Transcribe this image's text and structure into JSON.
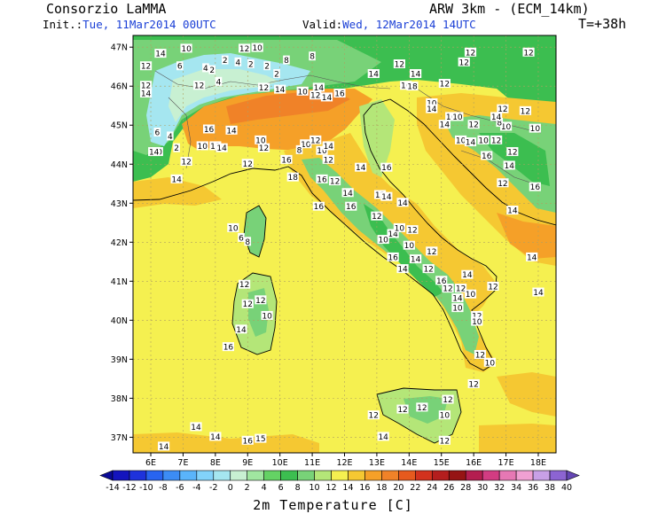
{
  "header": {
    "org": "Consorzio LaMMA",
    "model": "ARW 3km - (ECM_14km)",
    "init_label": "Init.:",
    "init_value": "Tue, 11Mar2014 00UTC",
    "valid_label": "Valid:",
    "valid_value": "Wed, 12Mar2014 14UTC",
    "lead": "T=+38h"
  },
  "axes": {
    "lat_labels": [
      "47N",
      "46N",
      "45N",
      "44N",
      "43N",
      "42N",
      "41N",
      "40N",
      "39N",
      "38N",
      "37N"
    ],
    "lon_labels": [
      "6E",
      "7E",
      "8E",
      "9E",
      "10E",
      "11E",
      "12E",
      "13E",
      "14E",
      "15E",
      "16E",
      "17E",
      "18E"
    ]
  },
  "colorbar": {
    "title": "2m Temperature [C]",
    "ticks": [
      "-14",
      "-12",
      "-10",
      "-8",
      "-6",
      "-4",
      "-2",
      "0",
      "2",
      "4",
      "6",
      "8",
      "10",
      "12",
      "14",
      "16",
      "18",
      "20",
      "22",
      "24",
      "26",
      "28",
      "30",
      "32",
      "34",
      "36",
      "38",
      "40"
    ],
    "colors": [
      "#0a0a96",
      "#1414be",
      "#1e32dc",
      "#2864f0",
      "#3c8cf5",
      "#5ab4fa",
      "#82d2fa",
      "#a5e6f0",
      "#c8f0d2",
      "#a0e6a0",
      "#64d264",
      "#3cbe50",
      "#78d278",
      "#b4e678",
      "#f5f050",
      "#f5c832",
      "#f5a028",
      "#f08228",
      "#e65a1e",
      "#d2321e",
      "#b41e1e",
      "#961414",
      "#b41e50",
      "#d23c82",
      "#e678b4",
      "#f0a0d2",
      "#c8a0e6",
      "#8c64d2",
      "#6446b4"
    ]
  },
  "colors": {
    "sea": "#f5f050",
    "warm": "#f5a028",
    "mild": "#b4e678",
    "cool": "#a5e6f0",
    "green": "#3cbe50"
  },
  "isotherm_labels": [
    {
      "t": "14",
      "lon": 6.3,
      "lat": 46.82
    },
    {
      "t": "10",
      "lon": 7.1,
      "lat": 46.95
    },
    {
      "t": "12",
      "lon": 8.9,
      "lat": 46.95
    },
    {
      "t": "10",
      "lon": 9.3,
      "lat": 46.97
    },
    {
      "t": "2",
      "lon": 8.3,
      "lat": 46.65
    },
    {
      "t": "4",
      "lon": 8.7,
      "lat": 46.6
    },
    {
      "t": "2",
      "lon": 9.1,
      "lat": 46.55
    },
    {
      "t": "2",
      "lon": 9.6,
      "lat": 46.5
    },
    {
      "t": "6",
      "lon": 6.9,
      "lat": 46.5
    },
    {
      "t": "4",
      "lon": 7.7,
      "lat": 46.45
    },
    {
      "t": "2",
      "lon": 7.9,
      "lat": 46.4
    },
    {
      "t": "4",
      "lon": 8.1,
      "lat": 46.1
    },
    {
      "t": "12",
      "lon": 5.85,
      "lat": 46.5
    },
    {
      "t": "12",
      "lon": 5.85,
      "lat": 46.0
    },
    {
      "t": "14",
      "lon": 5.85,
      "lat": 45.8
    },
    {
      "t": "12",
      "lon": 7.5,
      "lat": 46.0
    },
    {
      "t": "2",
      "lon": 9.9,
      "lat": 46.3
    },
    {
      "t": "14",
      "lon": 10.0,
      "lat": 45.9
    },
    {
      "t": "12",
      "lon": 9.5,
      "lat": 45.95
    },
    {
      "t": "10",
      "lon": 10.7,
      "lat": 45.85
    },
    {
      "t": "14",
      "lon": 11.2,
      "lat": 45.95
    },
    {
      "t": "8",
      "lon": 10.2,
      "lat": 46.65
    },
    {
      "t": "8",
      "lon": 11.0,
      "lat": 46.75
    },
    {
      "t": "12",
      "lon": 13.7,
      "lat": 46.55
    },
    {
      "t": "14",
      "lon": 12.9,
      "lat": 46.3
    },
    {
      "t": "14",
      "lon": 14.2,
      "lat": 46.3
    },
    {
      "t": "16",
      "lon": 13.9,
      "lat": 46.0
    },
    {
      "t": "18",
      "lon": 14.1,
      "lat": 45.98
    },
    {
      "t": "10",
      "lon": 14.7,
      "lat": 45.55
    },
    {
      "t": "12",
      "lon": 15.9,
      "lat": 46.85
    },
    {
      "t": "12",
      "lon": 17.7,
      "lat": 46.85
    },
    {
      "t": "12",
      "lon": 15.7,
      "lat": 46.6
    },
    {
      "t": "12",
      "lon": 15.1,
      "lat": 46.05
    },
    {
      "t": "14",
      "lon": 11.45,
      "lat": 45.7
    },
    {
      "t": "12",
      "lon": 11.1,
      "lat": 45.75
    },
    {
      "t": "16",
      "lon": 11.85,
      "lat": 45.8
    },
    {
      "t": "16",
      "lon": 7.8,
      "lat": 44.88
    },
    {
      "t": "14",
      "lon": 8.5,
      "lat": 44.85
    },
    {
      "t": "10",
      "lon": 7.6,
      "lat": 44.45
    },
    {
      "t": "12",
      "lon": 8.0,
      "lat": 44.45
    },
    {
      "t": "14",
      "lon": 8.2,
      "lat": 44.4
    },
    {
      "t": "4",
      "lon": 6.6,
      "lat": 44.7
    },
    {
      "t": "2",
      "lon": 6.8,
      "lat": 44.4
    },
    {
      "t": "6",
      "lon": 6.2,
      "lat": 44.8
    },
    {
      "t": "10",
      "lon": 6.2,
      "lat": 44.3
    },
    {
      "t": "12",
      "lon": 7.1,
      "lat": 44.05
    },
    {
      "t": "14",
      "lon": 6.8,
      "lat": 43.6
    },
    {
      "t": "10",
      "lon": 9.4,
      "lat": 44.6
    },
    {
      "t": "12",
      "lon": 9.5,
      "lat": 44.4
    },
    {
      "t": "10",
      "lon": 10.8,
      "lat": 44.5
    },
    {
      "t": "12",
      "lon": 11.1,
      "lat": 44.6
    },
    {
      "t": "10",
      "lon": 11.3,
      "lat": 44.33
    },
    {
      "t": "14",
      "lon": 11.5,
      "lat": 44.45
    },
    {
      "t": "8",
      "lon": 10.6,
      "lat": 44.35
    },
    {
      "t": "16",
      "lon": 10.2,
      "lat": 44.1
    },
    {
      "t": "12",
      "lon": 11.5,
      "lat": 44.1
    },
    {
      "t": "16",
      "lon": 11.3,
      "lat": 43.6
    },
    {
      "t": "12",
      "lon": 11.7,
      "lat": 43.55
    },
    {
      "t": "18",
      "lon": 10.4,
      "lat": 43.65
    },
    {
      "t": "16",
      "lon": 11.2,
      "lat": 42.9
    },
    {
      "t": "14",
      "lon": 12.5,
      "lat": 43.9
    },
    {
      "t": "16",
      "lon": 13.3,
      "lat": 43.9
    },
    {
      "t": "14",
      "lon": 12.1,
      "lat": 43.25
    },
    {
      "t": "16",
      "lon": 12.2,
      "lat": 42.9
    },
    {
      "t": "12",
      "lon": 13.1,
      "lat": 43.2
    },
    {
      "t": "14",
      "lon": 13.3,
      "lat": 43.15
    },
    {
      "t": "12",
      "lon": 13.0,
      "lat": 42.65
    },
    {
      "t": "14",
      "lon": 13.8,
      "lat": 43.0
    },
    {
      "t": "14",
      "lon": 13.5,
      "lat": 42.2
    },
    {
      "t": "10",
      "lon": 13.7,
      "lat": 42.35
    },
    {
      "t": "12",
      "lon": 14.1,
      "lat": 42.3
    },
    {
      "t": "10",
      "lon": 13.2,
      "lat": 42.05
    },
    {
      "t": "10",
      "lon": 14.0,
      "lat": 41.9
    },
    {
      "t": "12",
      "lon": 14.7,
      "lat": 41.75
    },
    {
      "t": "16",
      "lon": 13.5,
      "lat": 41.6
    },
    {
      "t": "14",
      "lon": 13.8,
      "lat": 41.3
    },
    {
      "t": "14",
      "lon": 14.2,
      "lat": 41.55
    },
    {
      "t": "12",
      "lon": 14.6,
      "lat": 41.3
    },
    {
      "t": "14",
      "lon": 15.8,
      "lat": 41.15
    },
    {
      "t": "16",
      "lon": 15.0,
      "lat": 41.0
    },
    {
      "t": "12",
      "lon": 15.2,
      "lat": 40.8
    },
    {
      "t": "12",
      "lon": 15.6,
      "lat": 40.8
    },
    {
      "t": "10",
      "lon": 15.9,
      "lat": 40.65
    },
    {
      "t": "14",
      "lon": 15.5,
      "lat": 40.55
    },
    {
      "t": "10",
      "lon": 15.5,
      "lat": 40.3
    },
    {
      "t": "12",
      "lon": 16.6,
      "lat": 40.85
    },
    {
      "t": "14",
      "lon": 17.8,
      "lat": 41.6
    },
    {
      "t": "14",
      "lon": 18.0,
      "lat": 40.7
    },
    {
      "t": "12",
      "lon": 16.1,
      "lat": 40.1
    },
    {
      "t": "10",
      "lon": 16.1,
      "lat": 39.95
    },
    {
      "t": "12",
      "lon": 16.2,
      "lat": 39.1
    },
    {
      "t": "10",
      "lon": 16.5,
      "lat": 38.9
    },
    {
      "t": "12",
      "lon": 16.0,
      "lat": 38.35
    },
    {
      "t": "12",
      "lon": 15.2,
      "lat": 37.95
    },
    {
      "t": "10",
      "lon": 15.1,
      "lat": 37.55
    },
    {
      "t": "12",
      "lon": 14.4,
      "lat": 37.75
    },
    {
      "t": "12",
      "lon": 13.8,
      "lat": 37.7
    },
    {
      "t": "12",
      "lon": 12.9,
      "lat": 37.55
    },
    {
      "t": "14",
      "lon": 13.2,
      "lat": 37.0
    },
    {
      "t": "12",
      "lon": 15.1,
      "lat": 36.9
    },
    {
      "t": "14",
      "lon": 8.0,
      "lat": 37.0
    },
    {
      "t": "14",
      "lon": 6.4,
      "lat": 36.75
    },
    {
      "t": "16",
      "lon": 9.0,
      "lat": 36.9
    },
    {
      "t": "15",
      "lon": 9.4,
      "lat": 36.95
    },
    {
      "t": "14",
      "lon": 7.4,
      "lat": 37.25
    },
    {
      "t": "8",
      "lon": 9.0,
      "lat": 42.0
    },
    {
      "t": "6",
      "lon": 8.8,
      "lat": 42.1
    },
    {
      "t": "10",
      "lon": 8.55,
      "lat": 42.35
    },
    {
      "t": "12",
      "lon": 8.9,
      "lat": 40.9
    },
    {
      "t": "12",
      "lon": 9.4,
      "lat": 40.5
    },
    {
      "t": "12",
      "lon": 9.0,
      "lat": 40.4
    },
    {
      "t": "10",
      "lon": 9.6,
      "lat": 40.1
    },
    {
      "t": "14",
      "lon": 8.8,
      "lat": 39.75
    },
    {
      "t": "16",
      "lon": 8.4,
      "lat": 39.3
    },
    {
      "t": "16",
      "lon": 16.4,
      "lat": 44.2
    },
    {
      "t": "12",
      "lon": 16.7,
      "lat": 44.6
    },
    {
      "t": "10",
      "lon": 16.3,
      "lat": 44.6
    },
    {
      "t": "12",
      "lon": 17.2,
      "lat": 44.3
    },
    {
      "t": "10",
      "lon": 17.0,
      "lat": 44.95
    },
    {
      "t": "8",
      "lon": 16.8,
      "lat": 45.05
    },
    {
      "t": "10",
      "lon": 17.9,
      "lat": 44.9
    },
    {
      "t": "14",
      "lon": 17.1,
      "lat": 43.95
    },
    {
      "t": "16",
      "lon": 17.9,
      "lat": 43.4
    },
    {
      "t": "14",
      "lon": 17.2,
      "lat": 42.8
    },
    {
      "t": "12",
      "lon": 17.6,
      "lat": 45.35
    },
    {
      "t": "12",
      "lon": 16.9,
      "lat": 45.4
    },
    {
      "t": "14",
      "lon": 16.7,
      "lat": 45.2
    },
    {
      "t": "10",
      "lon": 15.3,
      "lat": 45.2
    },
    {
      "t": "10",
      "lon": 15.5,
      "lat": 45.2
    },
    {
      "t": "12",
      "lon": 16.0,
      "lat": 45.0
    },
    {
      "t": "14",
      "lon": 15.1,
      "lat": 45.0
    },
    {
      "t": "10",
      "lon": 15.6,
      "lat": 44.6
    },
    {
      "t": "14",
      "lon": 15.9,
      "lat": 44.55
    },
    {
      "t": "12",
      "lon": 16.9,
      "lat": 43.5
    },
    {
      "t": "12",
      "lon": 9.0,
      "lat": 44.0
    },
    {
      "t": "14",
      "lon": 6.1,
      "lat": 44.3
    },
    {
      "t": "14",
      "lon": 14.7,
      "lat": 45.4
    }
  ]
}
